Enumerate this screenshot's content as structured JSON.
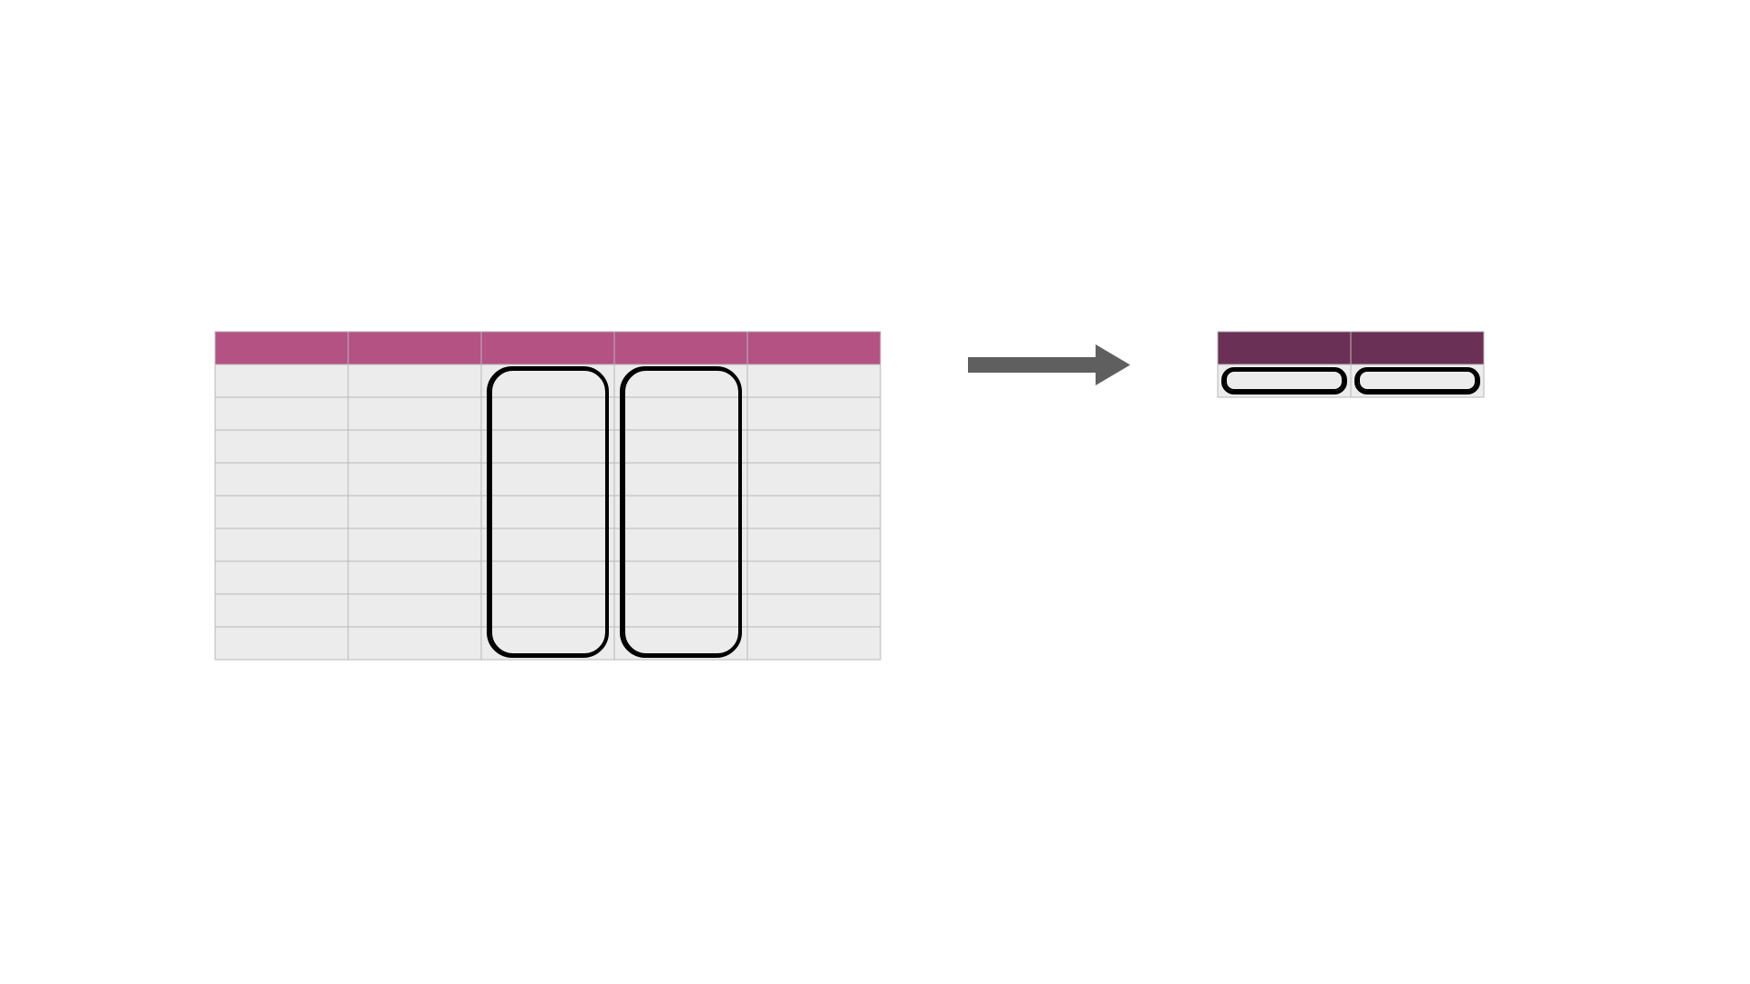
{
  "diagram": {
    "source_table": {
      "columns": 5,
      "body_rows": 9,
      "header_color": "#B35283",
      "cell_color": "#ECECEC",
      "grid_color": "#B8B8B8",
      "highlighted_columns": [
        3,
        4
      ],
      "headers": [
        "",
        "",
        "",
        "",
        ""
      ]
    },
    "arrow": {
      "direction": "right",
      "color": "#5F5F5F"
    },
    "result_table": {
      "columns": 2,
      "body_rows": 1,
      "header_color": "#6B3055",
      "cell_color": "#ECECEC",
      "grid_color": "#B8B8B8",
      "highlighted_columns": [
        1,
        2
      ],
      "headers": [
        "",
        ""
      ]
    },
    "highlight_color": "#000000"
  }
}
